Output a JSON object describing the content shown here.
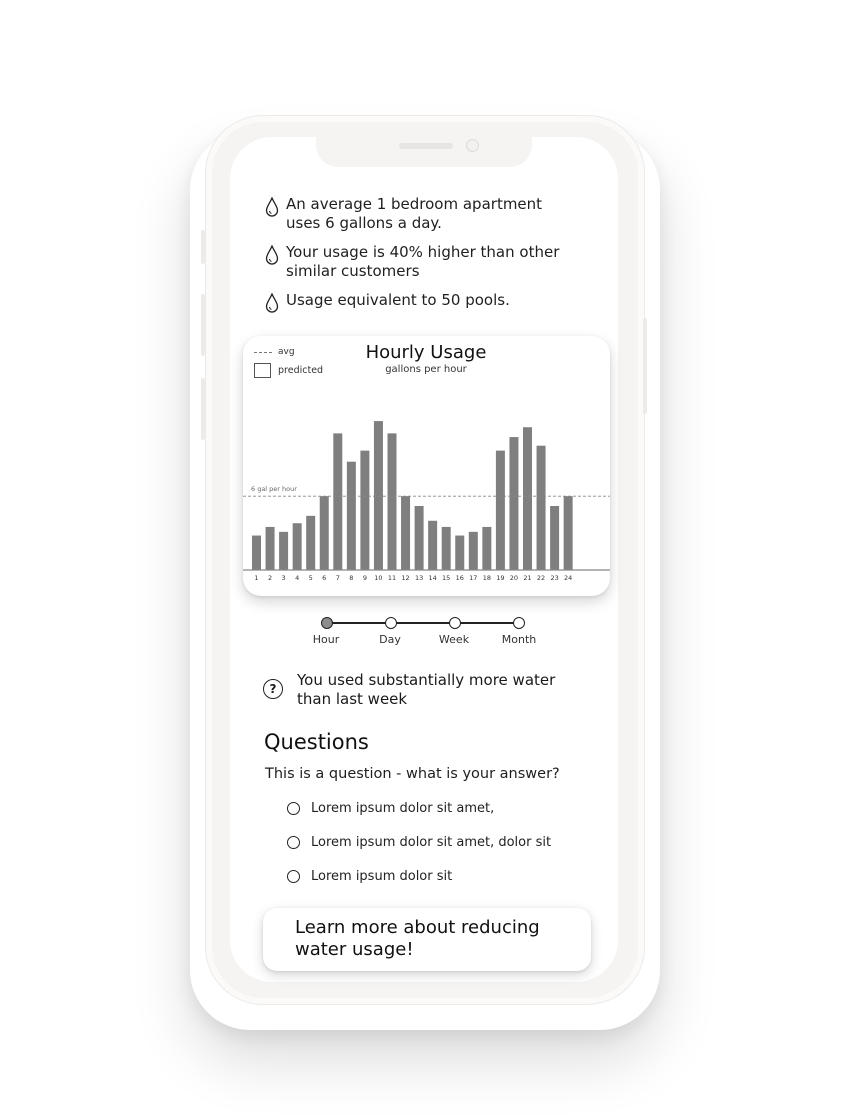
{
  "facts": [
    {
      "icon": "water-drop-icon",
      "text": "An average 1 bedroom apartment uses 6 gallons a day."
    },
    {
      "icon": "water-drop-icon",
      "text": "Your usage is 40% higher than other similar customers"
    },
    {
      "icon": "water-drop-icon",
      "text": "Usage equivalent to 50 pools."
    }
  ],
  "chart": {
    "legend_avg": "avg",
    "legend_predicted": "predicted",
    "title": "Hourly Usage",
    "subtitle": "gallons per hour",
    "avg_label": "6 gal per hour"
  },
  "chart_data": {
    "type": "bar",
    "title": "Hourly Usage",
    "subtitle": "gallons per hour",
    "categories": [
      "1",
      "2",
      "3",
      "4",
      "5",
      "6",
      "7",
      "8",
      "9",
      "10",
      "11",
      "12",
      "13",
      "14",
      "15",
      "16",
      "17",
      "18",
      "19",
      "20",
      "21",
      "22",
      "23",
      "24"
    ],
    "values": [
      2.8,
      3.5,
      3.1,
      3.8,
      4.4,
      6.0,
      11.1,
      8.8,
      9.7,
      12.1,
      11.1,
      6.0,
      5.2,
      4.0,
      3.5,
      2.8,
      3.1,
      3.5,
      9.7,
      10.8,
      11.6,
      10.1,
      5.2,
      6.0
    ],
    "average": 6,
    "average_label": "6 gal per hour",
    "ylim": [
      0,
      13
    ],
    "legend": [
      "avg",
      "predicted"
    ],
    "grid": false,
    "colors": {
      "bar": "#7f7f7f",
      "avg_line": "#888888"
    }
  },
  "timescale": {
    "options": [
      "Hour",
      "Day",
      "Week",
      "Month"
    ],
    "selected": "Hour"
  },
  "insight": {
    "icon": "question-circle-icon",
    "text": "You used substantially more water than last week"
  },
  "questions": {
    "heading": "Questions",
    "question": "This is a question - what is your answer?",
    "options": [
      "Lorem ipsum dolor sit amet,",
      "Lorem ipsum dolor sit amet, dolor sit",
      "Lorem ipsum dolor sit"
    ]
  },
  "cta": {
    "label": "Learn more about reducing water usage!"
  }
}
